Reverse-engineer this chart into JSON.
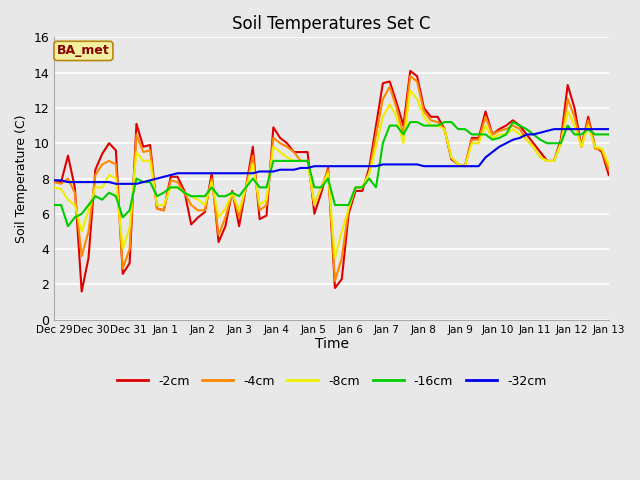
{
  "title": "Soil Temperatures Set C",
  "xlabel": "Time",
  "ylabel": "Soil Temperature (C)",
  "ylim": [
    0,
    16
  ],
  "yticks": [
    0,
    2,
    4,
    6,
    8,
    10,
    12,
    14,
    16
  ],
  "annotation_text": "BA_met",
  "annotation_color": "#8b0000",
  "annotation_bg": "#f0f0a0",
  "series_colors": {
    "-2cm": "#dd0000",
    "-4cm": "#ff8800",
    "-8cm": "#eeee00",
    "-16cm": "#00cc00",
    "-32cm": "#0000ee"
  },
  "xtick_labels": [
    "Dec 29",
    "Dec 30",
    "Dec 31",
    "Jan 1",
    "Jan 2",
    "Jan 3",
    "Jan 4",
    "Jan 5",
    "Jan 6",
    "Jan 7",
    "Jan 8",
    "Jan 9",
    "Jan 10",
    "Jan 11",
    "Jan 12",
    "Jan 13"
  ],
  "num_days": 15,
  "data": {
    "-2cm": [
      7.9,
      7.8,
      9.3,
      7.5,
      1.6,
      3.5,
      8.5,
      9.4,
      10.0,
      9.6,
      2.6,
      3.2,
      11.1,
      9.8,
      9.9,
      6.3,
      6.2,
      8.1,
      8.1,
      7.3,
      5.4,
      5.8,
      6.1,
      8.3,
      4.4,
      5.3,
      7.3,
      5.3,
      7.5,
      9.8,
      5.7,
      5.9,
      10.9,
      10.3,
      10.0,
      9.5,
      9.5,
      9.5,
      6.0,
      7.2,
      8.6,
      1.8,
      2.3,
      6.0,
      7.3,
      7.3,
      8.6,
      11.0,
      13.4,
      13.5,
      12.3,
      11.0,
      14.1,
      13.8,
      12.0,
      11.5,
      11.5,
      10.8,
      9.1,
      8.8,
      8.7,
      10.3,
      10.3,
      11.8,
      10.5,
      10.8,
      11.0,
      11.3,
      11.0,
      10.5,
      10.0,
      9.5,
      9.0,
      9.0,
      10.2,
      13.3,
      12.0,
      9.8,
      11.5,
      9.8,
      9.5,
      8.2
    ],
    "-4cm": [
      7.8,
      7.7,
      8.0,
      7.2,
      3.6,
      5.0,
      8.2,
      8.8,
      9.0,
      8.8,
      2.9,
      4.0,
      10.5,
      9.5,
      9.6,
      6.3,
      6.2,
      7.9,
      7.8,
      7.2,
      6.5,
      6.2,
      6.2,
      8.0,
      4.8,
      5.8,
      7.2,
      5.8,
      7.5,
      9.3,
      6.2,
      6.5,
      10.3,
      10.0,
      9.8,
      9.5,
      9.0,
      9.0,
      6.5,
      7.5,
      8.5,
      2.2,
      3.5,
      6.3,
      7.5,
      7.5,
      8.3,
      10.5,
      12.5,
      13.2,
      12.0,
      10.5,
      13.8,
      13.5,
      11.8,
      11.3,
      11.2,
      10.8,
      9.2,
      8.8,
      8.7,
      10.2,
      10.2,
      11.5,
      10.5,
      10.7,
      10.8,
      11.0,
      10.8,
      10.2,
      9.8,
      9.2,
      9.0,
      9.0,
      10.0,
      12.5,
      11.5,
      9.8,
      11.3,
      9.7,
      9.6,
      8.5
    ],
    "-8cm": [
      7.5,
      7.4,
      6.8,
      6.5,
      5.0,
      6.2,
      7.5,
      7.5,
      8.2,
      8.0,
      4.0,
      5.2,
      9.5,
      9.0,
      9.0,
      6.5,
      6.5,
      7.5,
      7.5,
      7.2,
      7.0,
      6.8,
      6.5,
      7.8,
      5.8,
      6.3,
      7.2,
      6.2,
      7.5,
      8.8,
      6.5,
      6.8,
      9.8,
      9.5,
      9.2,
      9.0,
      9.0,
      9.0,
      6.5,
      7.5,
      8.3,
      3.5,
      5.0,
      6.3,
      7.5,
      7.5,
      8.3,
      9.8,
      11.5,
      12.2,
      11.5,
      10.0,
      13.0,
      12.5,
      11.5,
      11.0,
      11.0,
      10.8,
      9.2,
      8.8,
      8.7,
      10.0,
      10.0,
      11.0,
      10.3,
      10.5,
      10.5,
      10.8,
      10.5,
      10.2,
      9.8,
      9.2,
      9.0,
      9.0,
      10.0,
      11.8,
      11.0,
      9.8,
      11.0,
      9.8,
      9.7,
      8.8
    ],
    "-16cm": [
      6.5,
      6.5,
      5.3,
      5.8,
      6.0,
      6.5,
      7.0,
      6.8,
      7.2,
      7.0,
      5.8,
      6.2,
      8.0,
      7.8,
      7.8,
      7.0,
      7.2,
      7.5,
      7.5,
      7.2,
      7.0,
      7.0,
      7.0,
      7.5,
      7.0,
      7.0,
      7.2,
      7.0,
      7.5,
      8.0,
      7.5,
      7.5,
      9.0,
      9.0,
      9.0,
      9.0,
      9.0,
      9.0,
      7.5,
      7.5,
      8.0,
      6.5,
      6.5,
      6.5,
      7.5,
      7.5,
      8.0,
      7.5,
      10.0,
      11.0,
      11.0,
      10.5,
      11.2,
      11.2,
      11.0,
      11.0,
      11.0,
      11.2,
      11.2,
      10.8,
      10.8,
      10.5,
      10.5,
      10.5,
      10.2,
      10.3,
      10.5,
      11.2,
      11.0,
      10.8,
      10.5,
      10.2,
      10.0,
      10.0,
      10.0,
      11.0,
      10.5,
      10.5,
      10.8,
      10.5,
      10.5,
      10.5
    ],
    "-32cm": [
      7.9,
      7.9,
      7.8,
      7.8,
      7.8,
      7.8,
      7.8,
      7.8,
      7.8,
      7.7,
      7.7,
      7.7,
      7.7,
      7.8,
      7.9,
      8.0,
      8.1,
      8.2,
      8.3,
      8.3,
      8.3,
      8.3,
      8.3,
      8.3,
      8.3,
      8.3,
      8.3,
      8.3,
      8.3,
      8.3,
      8.4,
      8.4,
      8.4,
      8.5,
      8.5,
      8.5,
      8.6,
      8.6,
      8.7,
      8.7,
      8.7,
      8.7,
      8.7,
      8.7,
      8.7,
      8.7,
      8.7,
      8.7,
      8.8,
      8.8,
      8.8,
      8.8,
      8.8,
      8.8,
      8.7,
      8.7,
      8.7,
      8.7,
      8.7,
      8.7,
      8.7,
      8.7,
      8.7,
      9.2,
      9.5,
      9.8,
      10.0,
      10.2,
      10.3,
      10.5,
      10.5,
      10.6,
      10.7,
      10.8,
      10.8,
      10.8,
      10.8,
      10.8,
      10.8,
      10.8,
      10.8,
      10.8
    ]
  }
}
